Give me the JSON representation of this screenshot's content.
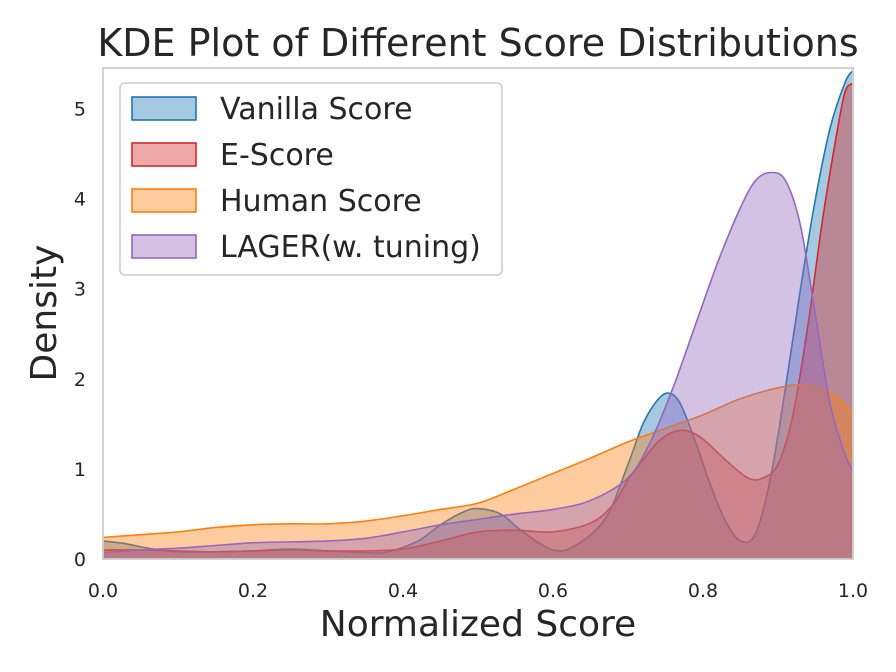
{
  "chart_data": {
    "type": "area",
    "title": "KDE Plot of Different Score Distributions",
    "xlabel": "Normalized Score",
    "ylabel": "Density",
    "xlim": [
      0.0,
      1.0
    ],
    "ylim": [
      0,
      5.45
    ],
    "xticks": [
      "0.0",
      "0.2",
      "0.4",
      "0.6",
      "0.8",
      "1.0"
    ],
    "yticks": [
      "0",
      "1",
      "2",
      "3",
      "4",
      "5"
    ],
    "grid": false,
    "legend_position": "top-left",
    "series": [
      {
        "name": "Vanilla Score",
        "color": "#1f77b4",
        "points": [
          [
            0.0,
            0.2
          ],
          [
            0.03,
            0.17
          ],
          [
            0.06,
            0.12
          ],
          [
            0.1,
            0.08
          ],
          [
            0.15,
            0.08
          ],
          [
            0.2,
            0.09
          ],
          [
            0.25,
            0.11
          ],
          [
            0.3,
            0.09
          ],
          [
            0.35,
            0.07
          ],
          [
            0.38,
            0.08
          ],
          [
            0.42,
            0.2
          ],
          [
            0.45,
            0.38
          ],
          [
            0.48,
            0.52
          ],
          [
            0.5,
            0.56
          ],
          [
            0.53,
            0.5
          ],
          [
            0.56,
            0.3
          ],
          [
            0.6,
            0.1
          ],
          [
            0.63,
            0.15
          ],
          [
            0.67,
            0.45
          ],
          [
            0.7,
            1.05
          ],
          [
            0.72,
            1.5
          ],
          [
            0.74,
            1.77
          ],
          [
            0.755,
            1.84
          ],
          [
            0.77,
            1.72
          ],
          [
            0.79,
            1.3
          ],
          [
            0.81,
            0.82
          ],
          [
            0.83,
            0.42
          ],
          [
            0.85,
            0.2
          ],
          [
            0.87,
            0.28
          ],
          [
            0.89,
            0.9
          ],
          [
            0.91,
            1.9
          ],
          [
            0.93,
            3.0
          ],
          [
            0.95,
            4.0
          ],
          [
            0.97,
            4.8
          ],
          [
            0.99,
            5.3
          ],
          [
            1.0,
            5.42
          ]
        ]
      },
      {
        "name": "E-Score",
        "color": "#d62728",
        "points": [
          [
            0.0,
            0.1
          ],
          [
            0.05,
            0.1
          ],
          [
            0.1,
            0.09
          ],
          [
            0.15,
            0.08
          ],
          [
            0.2,
            0.09
          ],
          [
            0.25,
            0.1
          ],
          [
            0.3,
            0.09
          ],
          [
            0.35,
            0.09
          ],
          [
            0.4,
            0.11
          ],
          [
            0.45,
            0.2
          ],
          [
            0.5,
            0.3
          ],
          [
            0.55,
            0.32
          ],
          [
            0.6,
            0.3
          ],
          [
            0.65,
            0.4
          ],
          [
            0.68,
            0.6
          ],
          [
            0.7,
            0.88
          ],
          [
            0.72,
            1.1
          ],
          [
            0.74,
            1.3
          ],
          [
            0.76,
            1.41
          ],
          [
            0.78,
            1.42
          ],
          [
            0.8,
            1.33
          ],
          [
            0.83,
            1.1
          ],
          [
            0.86,
            0.9
          ],
          [
            0.88,
            0.9
          ],
          [
            0.9,
            1.05
          ],
          [
            0.92,
            1.6
          ],
          [
            0.94,
            2.6
          ],
          [
            0.96,
            3.8
          ],
          [
            0.98,
            4.8
          ],
          [
            0.99,
            5.2
          ],
          [
            1.0,
            5.28
          ]
        ]
      },
      {
        "name": "Human Score",
        "color": "#ff7f0e",
        "points": [
          [
            0.0,
            0.24
          ],
          [
            0.05,
            0.27
          ],
          [
            0.1,
            0.3
          ],
          [
            0.15,
            0.35
          ],
          [
            0.2,
            0.38
          ],
          [
            0.25,
            0.39
          ],
          [
            0.3,
            0.39
          ],
          [
            0.35,
            0.42
          ],
          [
            0.4,
            0.48
          ],
          [
            0.45,
            0.55
          ],
          [
            0.5,
            0.62
          ],
          [
            0.55,
            0.78
          ],
          [
            0.6,
            0.95
          ],
          [
            0.65,
            1.12
          ],
          [
            0.7,
            1.3
          ],
          [
            0.75,
            1.45
          ],
          [
            0.8,
            1.6
          ],
          [
            0.85,
            1.78
          ],
          [
            0.9,
            1.9
          ],
          [
            0.93,
            1.93
          ],
          [
            0.96,
            1.88
          ],
          [
            0.98,
            1.78
          ],
          [
            1.0,
            1.62
          ]
        ]
      },
      {
        "name": "LAGER(w. tuning)",
        "color": "#9467bd",
        "points": [
          [
            0.0,
            0.07
          ],
          [
            0.05,
            0.1
          ],
          [
            0.1,
            0.12
          ],
          [
            0.15,
            0.15
          ],
          [
            0.2,
            0.18
          ],
          [
            0.25,
            0.19
          ],
          [
            0.3,
            0.2
          ],
          [
            0.35,
            0.23
          ],
          [
            0.4,
            0.3
          ],
          [
            0.45,
            0.38
          ],
          [
            0.5,
            0.44
          ],
          [
            0.55,
            0.5
          ],
          [
            0.6,
            0.55
          ],
          [
            0.65,
            0.65
          ],
          [
            0.7,
            0.9
          ],
          [
            0.73,
            1.3
          ],
          [
            0.76,
            1.9
          ],
          [
            0.79,
            2.6
          ],
          [
            0.82,
            3.3
          ],
          [
            0.85,
            3.9
          ],
          [
            0.87,
            4.2
          ],
          [
            0.89,
            4.29
          ],
          [
            0.91,
            4.2
          ],
          [
            0.93,
            3.7
          ],
          [
            0.95,
            2.7
          ],
          [
            0.97,
            1.7
          ],
          [
            0.99,
            1.15
          ],
          [
            1.0,
            0.98
          ]
        ]
      }
    ]
  }
}
